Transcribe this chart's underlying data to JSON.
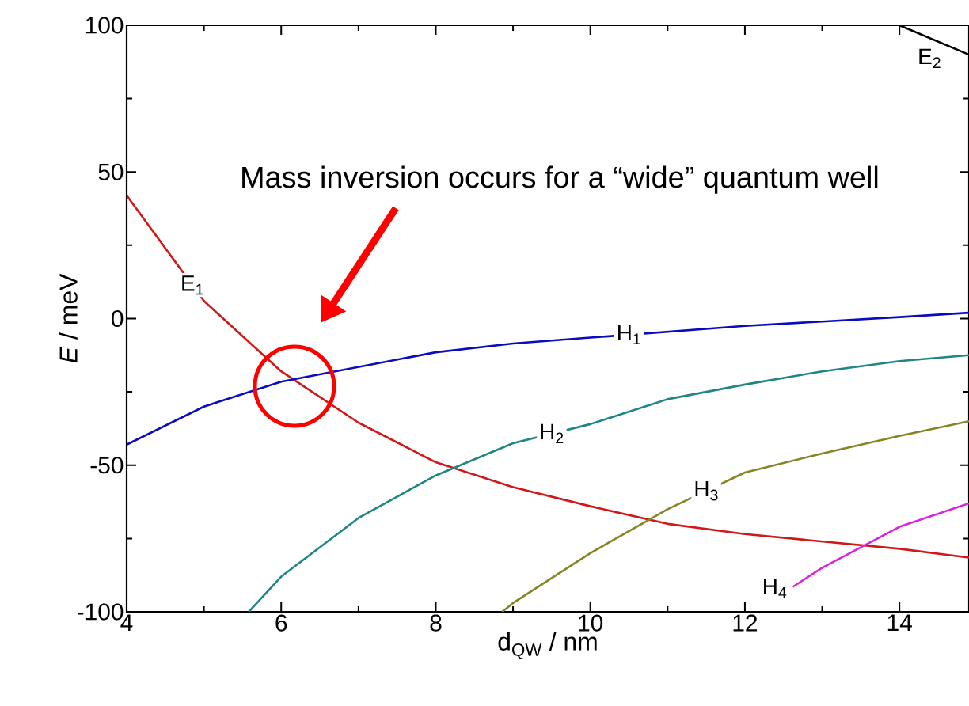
{
  "chart_data": {
    "type": "line",
    "xlabel": "d$_{QW}$ / nm",
    "ylabel": "*E* / meV",
    "xlim": [
      4,
      14.9
    ],
    "ylim": [
      -100,
      100
    ],
    "xticks": [
      4,
      6,
      8,
      10,
      12,
      14
    ],
    "yticks": [
      -100,
      -50,
      0,
      50,
      100
    ],
    "grid": false,
    "marker": "none",
    "line_style": "solid",
    "series": [
      {
        "name": "E$_{1}$",
        "color": "#d01818",
        "x": [
          4,
          5,
          6,
          7,
          8,
          9,
          10,
          11,
          12,
          13,
          14,
          14.9
        ],
        "values": [
          42,
          6,
          -18,
          -35.5,
          -49,
          -57.5,
          -64,
          -70,
          -73.5,
          -76,
          -78.5,
          -81.5
        ]
      },
      {
        "name": "H$_{1}$",
        "color": "#0a0ac0",
        "x": [
          4,
          5,
          6,
          7,
          8,
          9,
          10,
          11,
          12,
          13,
          14,
          14.9
        ],
        "values": [
          -43,
          -30,
          -21.5,
          -16.5,
          -11.5,
          -8.5,
          -6.5,
          -4.5,
          -2.5,
          -1,
          0.5,
          2
        ]
      },
      {
        "name": "H$_{2}$",
        "color": "#1f8585",
        "x": [
          5.58,
          6,
          7,
          8,
          9,
          10,
          11,
          12,
          13,
          14,
          14.9
        ],
        "values": [
          -100,
          -88,
          -68,
          -53.5,
          -42.5,
          -36,
          -27.5,
          -22.5,
          -18,
          -14.5,
          -12.5
        ]
      },
      {
        "name": "H$_{3}$",
        "color": "#858525",
        "x": [
          8.86,
          9,
          10,
          11,
          12,
          13,
          14,
          14.9
        ],
        "values": [
          -100,
          -97,
          -80,
          -65,
          -52.5,
          -46,
          -40,
          -35
        ]
      },
      {
        "name": "H$_{4}$",
        "color": "#e020e0",
        "x": [
          12.62,
          13,
          14,
          14.9
        ],
        "values": [
          -91.5,
          -85,
          -71,
          -63
        ]
      },
      {
        "name": "E$_{2}$",
        "color": "#000000",
        "x": [
          14,
          14.9
        ],
        "values": [
          100,
          90
        ]
      }
    ],
    "annotations": [
      "Mass inversion occurs for a “wide” quantum well"
    ]
  }
}
